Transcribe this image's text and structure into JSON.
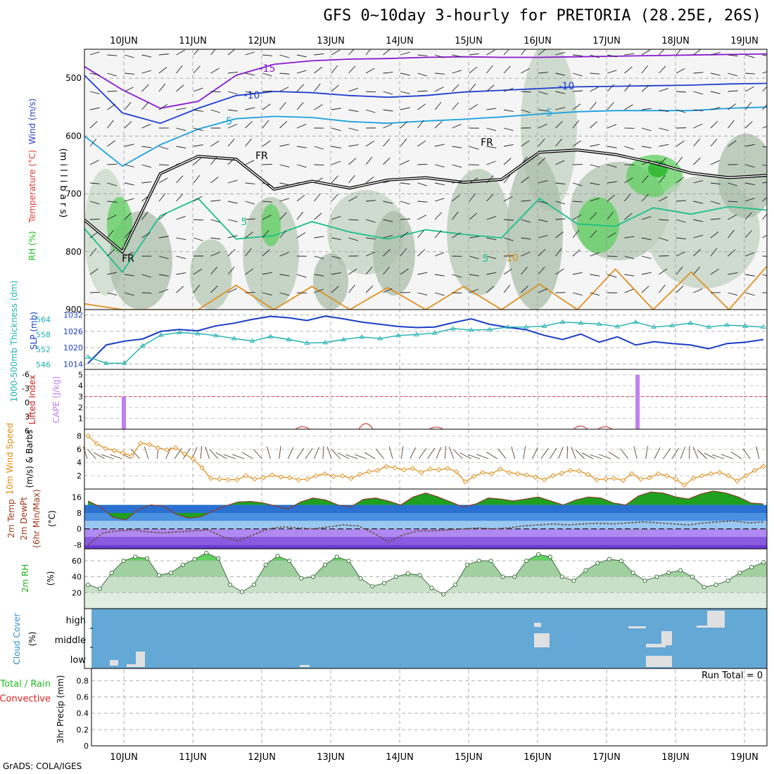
{
  "header": {
    "title": "GFS 0~10day 3-hourly for PRETORIA (28.25E, 26S)",
    "credit": "GrADS: COLA/IGES"
  },
  "colors": {
    "barb": "#000000",
    "cape": "#c080f0",
    "lifted_index": "#d02020",
    "slp": "#1a3cc8",
    "thickness": "#20b0b0",
    "wind_speed": "#e08a10",
    "temp_fill": "#1fa01f",
    "cold_fill": "#4a90e0",
    "rh_fill": "#40c840",
    "cloud_bg": "#64a8d6",
    "cloud_patch": "#e0e0e0"
  },
  "chart_data": [
    {
      "type": "heatmap",
      "panel": "upper-air",
      "ylabel_parts": [
        "RH (%)",
        "Temperature (°C)",
        "Wind (m/s)"
      ],
      "axis_label": "(m i l l i b a r s)",
      "x": [
        "10JUN",
        "11JUN",
        "12JUN",
        "13JUN",
        "14JUN",
        "15JUN",
        "16JUN",
        "17JUN",
        "18JUN",
        "19JUN"
      ],
      "yticks": [
        500,
        600,
        700,
        800,
        900
      ],
      "ylim": [
        900,
        450
      ],
      "contour_labels": [
        "-15",
        "-10",
        "-10",
        "-5",
        "-5",
        "FR",
        "FR",
        "FR",
        "5",
        "5",
        "10"
      ],
      "isotherms": [
        {
          "label": "-15",
          "color": "#8a1ad0",
          "p": [
            480,
            520,
            552,
            540,
            495,
            476,
            470,
            467,
            466,
            464,
            463,
            464,
            464,
            463,
            462,
            461,
            460,
            459,
            458
          ]
        },
        {
          "label": "-10",
          "color": "#1f3fd0",
          "p": [
            495,
            560,
            578,
            552,
            530,
            523,
            525,
            530,
            533,
            530,
            524,
            521,
            518,
            515,
            514,
            513,
            512,
            510,
            509
          ]
        },
        {
          "label": "-5",
          "color": "#1aa0e0",
          "p": [
            600,
            652,
            615,
            588,
            570,
            566,
            568,
            575,
            578,
            574,
            571,
            567,
            562,
            558,
            556,
            556,
            556,
            552,
            550
          ]
        },
        {
          "label": "FR",
          "color": "#000000",
          "p": [
            745,
            800,
            665,
            635,
            640,
            692,
            678,
            690,
            676,
            672,
            680,
            675,
            628,
            624,
            632,
            646,
            664,
            672,
            668
          ]
        },
        {
          "label": "5",
          "color": "#1ac08a",
          "p": [
            760,
            835,
            738,
            708,
            778,
            772,
            748,
            766,
            778,
            762,
            770,
            776,
            708,
            752,
            756,
            724,
            735,
            722,
            728
          ]
        },
        {
          "label": "10",
          "color": "#e09020",
          "p": [
            890,
            900,
            900,
            900,
            858,
            900,
            860,
            900,
            862,
            900,
            860,
            900,
            856,
            900,
            830,
            900,
            835,
            900,
            825
          ]
        }
      ]
    },
    {
      "type": "line",
      "panel": "slp-thickness",
      "ylabel_left": "1000-500mb Thickness (dm)",
      "ylabel_right": "SLP (mb)",
      "slp_ticks": [
        1014,
        1020,
        1026,
        1032
      ],
      "thick_ticks": [
        546,
        552,
        558,
        564
      ],
      "series": [
        {
          "name": "SLP (mb)",
          "axis": "slp",
          "values": [
            1014.2,
            1021.0,
            1022.4,
            1023.2,
            1026.0,
            1026.7,
            1026.2,
            1028.0,
            1029.0,
            1030.4,
            1031.5,
            1031.0,
            1030.0,
            1031.6,
            1030.6,
            1029.4,
            1028.6,
            1027.8,
            1027.4,
            1027.6,
            1029.2,
            1030.6,
            1028.6,
            1027.5,
            1026.6,
            1024.5,
            1023.0,
            1025.0,
            1022.0,
            1024.0,
            1021.0,
            1022.2,
            1021.5,
            1021.0,
            1019.6,
            1021.5,
            1022.0,
            1023.0
          ]
        },
        {
          "name": "1000-500mb Thickness (dm)",
          "axis": "thick",
          "values": [
            549.0,
            546.5,
            546.5,
            553.5,
            557.8,
            558.8,
            558.4,
            557.6,
            556.4,
            555.4,
            557.2,
            556.0,
            554.6,
            554.8,
            556.0,
            557.0,
            556.4,
            557.6,
            558.0,
            558.6,
            560.4,
            559.8,
            560.0,
            561.0,
            561.0,
            561.4,
            563.0,
            562.6,
            562.2,
            561.2,
            563.0,
            561.0,
            561.6,
            562.6,
            561.0,
            561.8,
            561.4,
            561.0
          ]
        }
      ]
    },
    {
      "type": "bar",
      "panel": "cape-li",
      "ylabel_left": "Lifted Index",
      "ylabel_right": "CAPE (J/kg)",
      "li_ticks": [
        "-6",
        "-3",
        "0",
        "3",
        "6"
      ],
      "cape_ticks": [
        "1",
        "2",
        "3",
        "4",
        "5"
      ],
      "reference_line": 3,
      "x_days": [
        0.0,
        7.45
      ],
      "values": [
        3,
        5
      ]
    },
    {
      "type": "line",
      "panel": "wind",
      "ylabel_left": "10m Wind Speed",
      "ylabel_right": "(m/s) & Barbs",
      "yticks": [
        2,
        4,
        6,
        8
      ],
      "ylim": [
        0,
        9
      ],
      "series": [
        {
          "name": "10m Wind Speed",
          "values": [
            8.0,
            6.8,
            6.1,
            5.8,
            5.4,
            5.0,
            6.9,
            6.7,
            6.2,
            5.9,
            6.2,
            5.3,
            4.5,
            3.2,
            1.6,
            1.5,
            1.4,
            1.4,
            2.0,
            1.5,
            1.7,
            2.1,
            1.8,
            1.7,
            1.4,
            1.5,
            2.0,
            2.3,
            1.9,
            2.0,
            1.6,
            2.2,
            2.6,
            2.8,
            3.4,
            3.2,
            2.9,
            3.1,
            2.5,
            3.0,
            2.9,
            3.1,
            2.6,
            1.1,
            1.9,
            2.5,
            2.3,
            3.0,
            2.5,
            2.3,
            2.1,
            1.8,
            1.4,
            2.0,
            2.4,
            2.8,
            2.7,
            2.2,
            1.4,
            1.5,
            1.6,
            1.3,
            2.3,
            1.5,
            1.7,
            2.3,
            2.0,
            1.5,
            0.6,
            1.6,
            2.0,
            2.3,
            2.5,
            2.0,
            1.2,
            2.0,
            2.8,
            3.4
          ]
        }
      ]
    },
    {
      "type": "area",
      "panel": "temperature",
      "ylabel_parts": [
        "2m Temp",
        "2m DewPt",
        "(6hr Min/Max)",
        "(°C)"
      ],
      "yticks": [
        "16",
        "8",
        "0",
        "-8"
      ],
      "ylim": [
        -10,
        20
      ],
      "series": [
        {
          "name": "2m Temp",
          "values": [
            14.0,
            11.0,
            5.8,
            4.5,
            9.5,
            12.0,
            11.5,
            7.5,
            5.5,
            6.0,
            9.0,
            11.5,
            13.5,
            13.8,
            13.0,
            11.5,
            10.0,
            13.5,
            15.5,
            14.5,
            12.0,
            11.0,
            14.8,
            15.5,
            14.0,
            12.0,
            16.0,
            18.0,
            16.0,
            13.5,
            11.0,
            12.5,
            15.5,
            15.0,
            14.0,
            15.0,
            16.0,
            14.0,
            12.0,
            14.5,
            16.0,
            15.5,
            13.0,
            12.0,
            16.5,
            18.5,
            18.0,
            16.0,
            15.0,
            17.5,
            19.0,
            18.0,
            16.0,
            13.0,
            12.5
          ]
        },
        {
          "name": "2m DewPt",
          "values": [
            -8.0,
            -2.0,
            -1.0,
            -0.5,
            -1.5,
            -2.0,
            -1.5,
            -1.0,
            -0.5,
            -4.0,
            -6.0,
            -3.0,
            0.0,
            1.0,
            0.5,
            0.0,
            1.0,
            2.0,
            1.5,
            -2.0,
            -6.5,
            -3.0,
            -1.0,
            -1.0,
            -0.5,
            0.0,
            0.5,
            0.0,
            0.5,
            1.5,
            2.0,
            2.5,
            2.0,
            2.5,
            2.8,
            2.5,
            3.0,
            3.5,
            3.0,
            2.5,
            2.0,
            3.0,
            3.5,
            4.0,
            3.0,
            3.5
          ]
        }
      ]
    },
    {
      "type": "area",
      "panel": "rh",
      "ylabel": "2m RH",
      "unit": "(%)",
      "yticks": [
        20,
        40,
        60
      ],
      "ylim": [
        0,
        75
      ],
      "series": [
        {
          "name": "2m RH",
          "values": [
            30,
            25,
            45,
            60,
            65,
            63,
            42,
            45,
            55,
            62,
            70,
            63,
            30,
            21,
            30,
            55,
            66,
            60,
            38,
            40,
            55,
            65,
            60,
            38,
            28,
            32,
            40,
            44,
            42,
            26,
            18,
            30,
            55,
            60,
            60,
            40,
            40,
            60,
            68,
            65,
            40,
            35,
            48,
            57,
            62,
            60,
            45,
            35,
            40,
            45,
            48,
            40,
            27,
            30,
            35,
            45,
            52,
            58
          ]
        }
      ]
    },
    {
      "type": "heatmap",
      "panel": "cloud",
      "ylabel": "Cloud Cover",
      "unit": "(%)",
      "levels": [
        "high",
        "middle",
        "low"
      ]
    },
    {
      "type": "bar",
      "panel": "precip",
      "ylabel_left": "Total / Rain",
      "ylabel_left2": "Convective",
      "ylabel_right": "3hr Precip (mm)",
      "yticks": [
        "0",
        "0.2",
        "0.4",
        "0.6",
        "0.8"
      ],
      "annotation": "Run Total = 0",
      "values": []
    }
  ]
}
